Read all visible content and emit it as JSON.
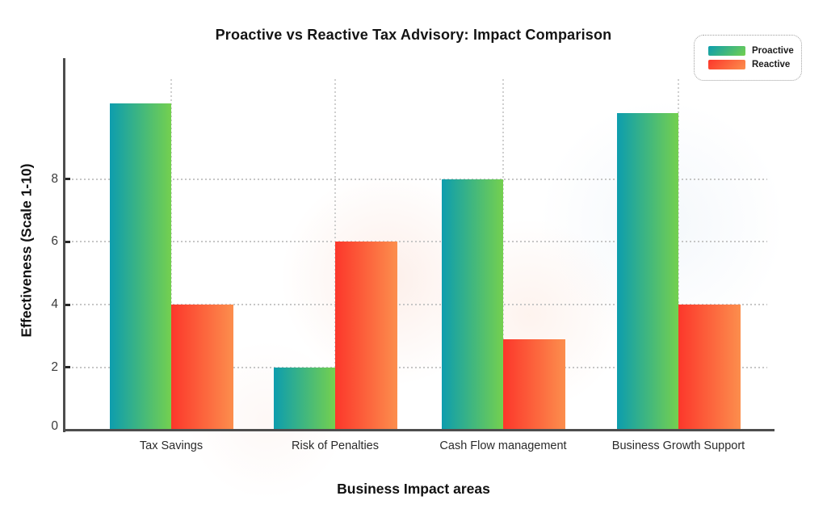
{
  "title": "Proactive vs Reactive Tax Advisory: Impact Comparison",
  "axes": {
    "x_title": "Business Impact areas",
    "y_title": "Effectiveness (Scale 1-10)"
  },
  "legend": {
    "position": "top-right",
    "items": [
      {
        "label": "Proactive",
        "gradient": [
          "#0d9dae",
          "#74d04f"
        ]
      },
      {
        "label": "Reactive",
        "gradient": [
          "#fc372b",
          "#fc8e4d"
        ]
      }
    ]
  },
  "chart_data": {
    "type": "bar",
    "title": "Proactive vs Reactive Tax Advisory: Impact Comparison",
    "xlabel": "Business Impact areas",
    "ylabel": "Effectiveness (Scale 1-10)",
    "categories": [
      "Tax Savings",
      "Risk of Penalties",
      "Cash Flow management",
      "Business Growth Support"
    ],
    "series": [
      {
        "name": "Proactive",
        "values": [
          10.4,
          2,
          8,
          10.1
        ],
        "gradient": [
          "#0d9dae",
          "#74d04f"
        ]
      },
      {
        "name": "Reactive",
        "values": [
          4,
          6,
          2.9,
          4
        ],
        "gradient": [
          "#fc372b",
          "#fc8e4d"
        ]
      }
    ],
    "yticks": [
      0,
      2,
      4,
      6,
      8
    ],
    "ylim": [
      0,
      11.85
    ],
    "grid": {
      "horizontal": "dotted",
      "vertical": "dotted-at-category-centers"
    },
    "legend_position": "top-right"
  },
  "colors": {
    "axis": "#4d4d4d",
    "grid": "#c6c6c6",
    "tick_label": "#3a3a3a",
    "title": "#141414",
    "background": "#ffffff"
  }
}
